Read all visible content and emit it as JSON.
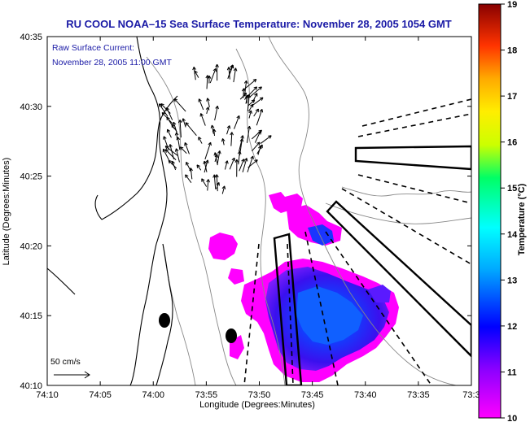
{
  "chart_data": {
    "type": "heatmap",
    "title": "RU COOL  NOAA–15  Sea Surface Temperature:  November 28, 2005 1054 GMT",
    "annotation_lines": [
      "Raw Surface Current:",
      "November 28, 2005 11:00 GMT"
    ],
    "xlabel": "Longitude (Degrees:Minutes)",
    "ylabel": "Latitude (Degrees:Minutes)",
    "x_tick_labels": [
      "74:10",
      "74:05",
      "74:00",
      "73:55",
      "73:50",
      "73:45",
      "73:40",
      "73:35",
      "73:3"
    ],
    "y_tick_labels": [
      "40:35",
      "40:30",
      "40:25",
      "40:20",
      "40:15",
      "40:10"
    ],
    "xlim_deg": [
      -74.1667,
      -73.5
    ],
    "ylim_deg": [
      40.1667,
      40.5833
    ],
    "colorbar": {
      "label": "Temperature (°C)",
      "range": [
        10,
        19
      ],
      "tick_labels": [
        "19",
        "18",
        "17",
        "16",
        "15",
        "14",
        "13",
        "12",
        "11",
        "10"
      ]
    },
    "scale_arrow_label": "50 cm/s",
    "dark_text_color": "#000000",
    "label_color": "#1a1aa6"
  }
}
